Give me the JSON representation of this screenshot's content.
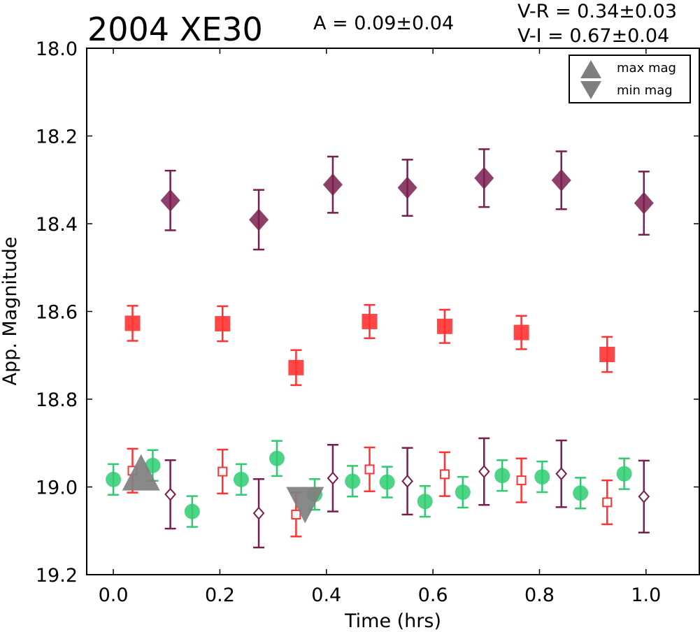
{
  "chart_data": {
    "type": "scatter",
    "title": "2004 XE30",
    "annotations": {
      "amplitude": "A  = 0.09±0.04",
      "v_r": "V-R = 0.34±0.03",
      "v_i": "V-I  = 0.67±0.04"
    },
    "xlabel": "Time (hrs)",
    "ylabel": "App. Magnitude",
    "xlim": [
      -0.05,
      1.1
    ],
    "ylim": [
      19.2,
      18.0
    ],
    "y_inverted": true,
    "x_ticks": [
      "0.0",
      "0.2",
      "0.4",
      "0.6",
      "0.8",
      "1.0"
    ],
    "y_ticks": [
      "18.0",
      "18.2",
      "18.4",
      "18.6",
      "18.8",
      "19.0",
      "19.2"
    ],
    "grid": false,
    "legend_position": "top-right",
    "legend": [
      {
        "label": "max mag",
        "marker": "triangle-up",
        "color": "#7f7f7f"
      },
      {
        "label": "min mag",
        "marker": "triangle-down",
        "color": "#7f7f7f"
      }
    ],
    "colors": {
      "green": "#2ecc71",
      "red": "#ff3333",
      "purple": "#7a1d50",
      "gray": "#7f7f7f"
    },
    "series": [
      {
        "marker": "diamond-filled",
        "color": "#7a1d50",
        "x": [
          0.107,
          0.273,
          0.412,
          0.552,
          0.696,
          0.841,
          0.996
        ],
        "y": [
          18.347,
          18.391,
          18.311,
          18.318,
          18.296,
          18.301,
          18.353
        ],
        "err": [
          0.068,
          0.068,
          0.064,
          0.064,
          0.066,
          0.066,
          0.072
        ]
      },
      {
        "marker": "square-filled",
        "color": "#ff3333",
        "x": [
          0.036,
          0.205,
          0.343,
          0.481,
          0.622,
          0.766,
          0.927
        ],
        "y": [
          18.627,
          18.628,
          18.728,
          18.623,
          18.634,
          18.648,
          18.698
        ],
        "err": [
          0.04,
          0.04,
          0.04,
          0.038,
          0.038,
          0.038,
          0.04
        ]
      },
      {
        "marker": "circle-filled",
        "color": "#2ecc71",
        "x": [
          0.0,
          0.074,
          0.148,
          0.24,
          0.307,
          0.378,
          0.449,
          0.514,
          0.585,
          0.656,
          0.73,
          0.805,
          0.877,
          0.959
        ],
        "y": [
          18.983,
          18.951,
          19.056,
          18.983,
          18.935,
          19.017,
          18.987,
          18.989,
          19.033,
          19.012,
          18.974,
          18.977,
          19.014,
          18.97
        ],
        "err": [
          0.035,
          0.035,
          0.035,
          0.035,
          0.04,
          0.035,
          0.035,
          0.035,
          0.035,
          0.035,
          0.035,
          0.035,
          0.035,
          0.035
        ]
      },
      {
        "marker": "square-open",
        "color": "#ff3333",
        "x": [
          0.036,
          0.205,
          0.343,
          0.481,
          0.622,
          0.766,
          0.927
        ],
        "y": [
          18.963,
          18.965,
          19.063,
          18.96,
          18.971,
          18.985,
          19.035
        ],
        "err": [
          0.05,
          0.05,
          0.05,
          0.05,
          0.05,
          0.05,
          0.05
        ]
      },
      {
        "marker": "diamond-open",
        "color": "#7a1d50",
        "x": [
          0.107,
          0.273,
          0.412,
          0.552,
          0.696,
          0.841,
          0.996
        ],
        "y": [
          19.017,
          19.06,
          18.98,
          18.987,
          18.965,
          18.97,
          19.022
        ],
        "err": [
          0.078,
          0.078,
          0.076,
          0.076,
          0.076,
          0.076,
          0.082
        ]
      },
      {
        "marker": "triangle-up",
        "color": "#7f7f7f",
        "x": [
          0.052
        ],
        "y": [
          18.97
        ]
      },
      {
        "marker": "triangle-down",
        "color": "#7f7f7f",
        "x": [
          0.36
        ],
        "y": [
          19.035
        ]
      }
    ]
  }
}
